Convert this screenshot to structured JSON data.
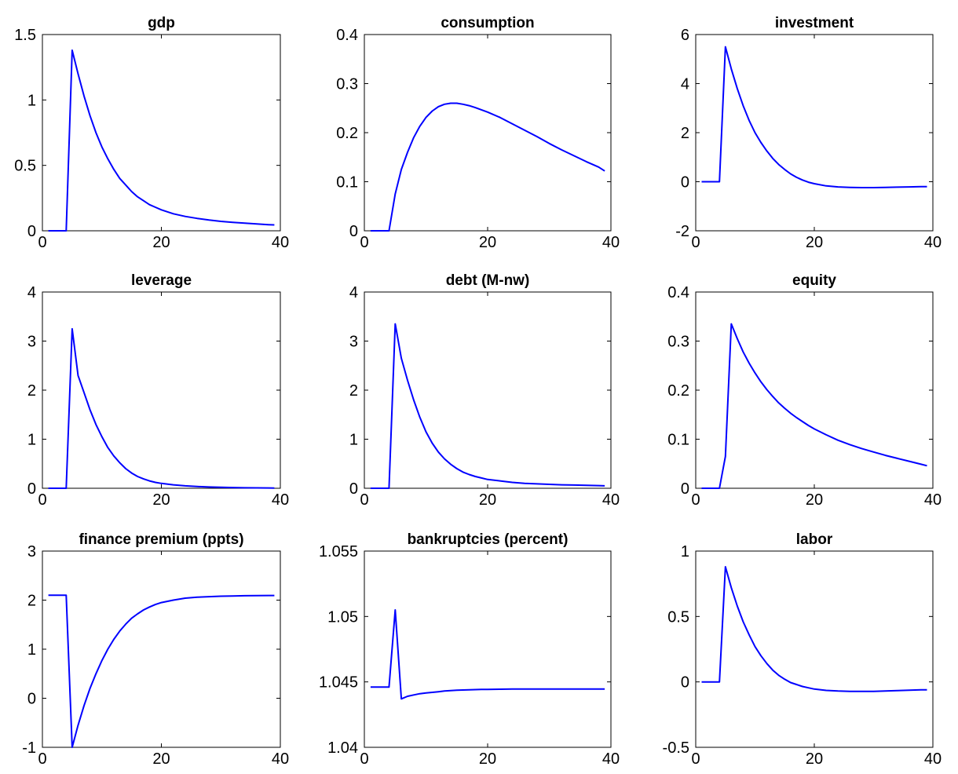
{
  "figure": {
    "line_color": "#0000ff"
  },
  "chart_data": [
    {
      "type": "line",
      "title": "gdp",
      "xlim": [
        0,
        40
      ],
      "ylim": [
        0,
        1.5
      ],
      "xticks": [
        "0",
        "20",
        "40"
      ],
      "xtick_values": [
        0,
        20,
        40
      ],
      "yticks": [
        "0",
        "0.5",
        "1",
        "1.5"
      ],
      "ytick_values": [
        0,
        0.5,
        1,
        1.5
      ],
      "x": [
        1,
        2,
        3,
        4,
        5,
        6,
        7,
        8,
        9,
        10,
        11,
        12,
        13,
        14,
        15,
        16,
        17,
        18,
        19,
        20,
        22,
        24,
        26,
        28,
        30,
        32,
        34,
        36,
        38,
        39
      ],
      "y": [
        0,
        0,
        0,
        0,
        1.38,
        1.2,
        1.03,
        0.88,
        0.75,
        0.64,
        0.55,
        0.47,
        0.4,
        0.35,
        0.3,
        0.26,
        0.23,
        0.2,
        0.18,
        0.16,
        0.13,
        0.11,
        0.095,
        0.082,
        0.072,
        0.064,
        0.058,
        0.052,
        0.047,
        0.045
      ]
    },
    {
      "type": "line",
      "title": "consumption",
      "xlim": [
        0,
        40
      ],
      "ylim": [
        0,
        0.4
      ],
      "xticks": [
        "0",
        "20",
        "40"
      ],
      "xtick_values": [
        0,
        20,
        40
      ],
      "yticks": [
        "0",
        "0.1",
        "0.2",
        "0.3",
        "0.4"
      ],
      "ytick_values": [
        0,
        0.1,
        0.2,
        0.3,
        0.4
      ],
      "x": [
        1,
        2,
        3,
        4,
        5,
        6,
        7,
        8,
        9,
        10,
        11,
        12,
        13,
        14,
        15,
        16,
        17,
        18,
        20,
        22,
        24,
        26,
        28,
        30,
        32,
        34,
        36,
        38,
        39
      ],
      "y": [
        0,
        0,
        0,
        0,
        0.075,
        0.125,
        0.16,
        0.19,
        0.213,
        0.231,
        0.244,
        0.253,
        0.258,
        0.26,
        0.26,
        0.258,
        0.255,
        0.251,
        0.242,
        0.231,
        0.218,
        0.205,
        0.192,
        0.178,
        0.165,
        0.153,
        0.141,
        0.13,
        0.122
      ]
    },
    {
      "type": "line",
      "title": "investment",
      "xlim": [
        0,
        40
      ],
      "ylim": [
        -2,
        6
      ],
      "xticks": [
        "0",
        "20",
        "40"
      ],
      "xtick_values": [
        0,
        20,
        40
      ],
      "yticks": [
        "-2",
        "0",
        "2",
        "4",
        "6"
      ],
      "ytick_values": [
        -2,
        0,
        2,
        4,
        6
      ],
      "x": [
        1,
        2,
        3,
        4,
        5,
        6,
        7,
        8,
        9,
        10,
        11,
        12,
        13,
        14,
        15,
        16,
        17,
        18,
        19,
        20,
        22,
        24,
        26,
        28,
        30,
        32,
        34,
        36,
        38,
        39
      ],
      "y": [
        0,
        0,
        0,
        0,
        5.5,
        4.6,
        3.8,
        3.1,
        2.5,
        2.0,
        1.6,
        1.25,
        0.95,
        0.7,
        0.5,
        0.32,
        0.18,
        0.07,
        -0.02,
        -0.08,
        -0.17,
        -0.21,
        -0.23,
        -0.24,
        -0.24,
        -0.23,
        -0.22,
        -0.21,
        -0.2,
        -0.2
      ]
    },
    {
      "type": "line",
      "title": "leverage",
      "xlim": [
        0,
        40
      ],
      "ylim": [
        0,
        4
      ],
      "xticks": [
        "0",
        "20",
        "40"
      ],
      "xtick_values": [
        0,
        20,
        40
      ],
      "yticks": [
        "0",
        "1",
        "2",
        "3",
        "4"
      ],
      "ytick_values": [
        0,
        1,
        2,
        3,
        4
      ],
      "x": [
        1,
        2,
        3,
        4,
        5,
        6,
        7,
        8,
        9,
        10,
        11,
        12,
        13,
        14,
        15,
        16,
        17,
        18,
        19,
        20,
        22,
        24,
        26,
        28,
        30,
        32,
        34,
        36,
        38,
        39
      ],
      "y": [
        0,
        0,
        0,
        0,
        3.25,
        2.3,
        1.95,
        1.6,
        1.3,
        1.05,
        0.83,
        0.66,
        0.52,
        0.4,
        0.31,
        0.24,
        0.19,
        0.15,
        0.12,
        0.1,
        0.07,
        0.05,
        0.035,
        0.025,
        0.02,
        0.015,
        0.01,
        0.008,
        0.006,
        0.005
      ]
    },
    {
      "type": "line",
      "title": "debt (M-nw)",
      "xlim": [
        0,
        40
      ],
      "ylim": [
        0,
        4
      ],
      "xticks": [
        "0",
        "20",
        "40"
      ],
      "xtick_values": [
        0,
        20,
        40
      ],
      "yticks": [
        "0",
        "1",
        "2",
        "3",
        "4"
      ],
      "ytick_values": [
        0,
        1,
        2,
        3,
        4
      ],
      "x": [
        1,
        2,
        3,
        4,
        5,
        6,
        7,
        8,
        9,
        10,
        11,
        12,
        13,
        14,
        15,
        16,
        17,
        18,
        19,
        20,
        22,
        24,
        26,
        28,
        30,
        32,
        34,
        36,
        38,
        39
      ],
      "y": [
        0,
        0,
        0,
        0,
        3.35,
        2.65,
        2.2,
        1.8,
        1.45,
        1.15,
        0.92,
        0.74,
        0.6,
        0.49,
        0.4,
        0.33,
        0.28,
        0.24,
        0.21,
        0.18,
        0.15,
        0.12,
        0.1,
        0.09,
        0.08,
        0.07,
        0.065,
        0.06,
        0.055,
        0.05
      ]
    },
    {
      "type": "line",
      "title": "equity",
      "xlim": [
        0,
        40
      ],
      "ylim": [
        0,
        0.4
      ],
      "xticks": [
        "0",
        "20",
        "40"
      ],
      "xtick_values": [
        0,
        20,
        40
      ],
      "yticks": [
        "0",
        "0.1",
        "0.2",
        "0.3",
        "0.4"
      ],
      "ytick_values": [
        0,
        0.1,
        0.2,
        0.3,
        0.4
      ],
      "x": [
        1,
        2,
        3,
        4,
        5,
        6,
        7,
        8,
        9,
        10,
        11,
        12,
        13,
        14,
        15,
        16,
        17,
        18,
        19,
        20,
        22,
        24,
        26,
        28,
        30,
        32,
        34,
        36,
        38,
        39
      ],
      "y": [
        0,
        0,
        0,
        0,
        0.065,
        0.335,
        0.305,
        0.278,
        0.255,
        0.235,
        0.217,
        0.201,
        0.187,
        0.174,
        0.163,
        0.153,
        0.144,
        0.136,
        0.128,
        0.121,
        0.109,
        0.098,
        0.089,
        0.081,
        0.074,
        0.067,
        0.061,
        0.055,
        0.049,
        0.046
      ]
    },
    {
      "type": "line",
      "title": "finance premium (ppts)",
      "xlim": [
        0,
        40
      ],
      "ylim": [
        -1,
        3
      ],
      "xticks": [
        "0",
        "20",
        "40"
      ],
      "xtick_values": [
        0,
        20,
        40
      ],
      "yticks": [
        "-1",
        "0",
        "1",
        "2",
        "3"
      ],
      "ytick_values": [
        -1,
        0,
        1,
        2,
        3
      ],
      "x": [
        1,
        2,
        3,
        4,
        5,
        6,
        7,
        8,
        9,
        10,
        11,
        12,
        13,
        14,
        15,
        16,
        17,
        18,
        19,
        20,
        22,
        24,
        26,
        28,
        30,
        32,
        34,
        36,
        38,
        39
      ],
      "y": [
        2.1,
        2.1,
        2.1,
        2.1,
        -1.0,
        -0.55,
        -0.15,
        0.2,
        0.5,
        0.77,
        1.0,
        1.2,
        1.37,
        1.51,
        1.63,
        1.72,
        1.8,
        1.86,
        1.91,
        1.95,
        2.0,
        2.04,
        2.06,
        2.07,
        2.08,
        2.085,
        2.09,
        2.092,
        2.095,
        2.095
      ]
    },
    {
      "type": "line",
      "title": "bankruptcies (percent)",
      "xlim": [
        0,
        40
      ],
      "ylim": [
        1.04,
        1.055
      ],
      "xticks": [
        "0",
        "20",
        "40"
      ],
      "xtick_values": [
        0,
        20,
        40
      ],
      "yticks": [
        "1.04",
        "1.045",
        "1.05",
        "1.055"
      ],
      "ytick_values": [
        1.04,
        1.045,
        1.05,
        1.055
      ],
      "x": [
        1,
        2,
        3,
        4,
        5,
        6,
        7,
        8,
        9,
        10,
        11,
        12,
        13,
        14,
        15,
        16,
        17,
        18,
        19,
        20,
        22,
        24,
        26,
        28,
        30,
        32,
        34,
        36,
        38,
        39
      ],
      "y": [
        1.0446,
        1.0446,
        1.0446,
        1.0446,
        1.0505,
        1.0437,
        1.0439,
        1.044,
        1.0441,
        1.04415,
        1.0442,
        1.04425,
        1.0443,
        1.04433,
        1.04436,
        1.04438,
        1.0444,
        1.04441,
        1.04442,
        1.04443,
        1.04444,
        1.04445,
        1.04445,
        1.04446,
        1.04446,
        1.04446,
        1.04446,
        1.04446,
        1.04446,
        1.04446
      ]
    },
    {
      "type": "line",
      "title": "labor",
      "xlim": [
        0,
        40
      ],
      "ylim": [
        -0.5,
        1
      ],
      "xticks": [
        "0",
        "20",
        "40"
      ],
      "xtick_values": [
        0,
        20,
        40
      ],
      "yticks": [
        "-0.5",
        "0",
        "0.5",
        "1"
      ],
      "ytick_values": [
        -0.5,
        0,
        0.5,
        1
      ],
      "x": [
        1,
        2,
        3,
        4,
        5,
        6,
        7,
        8,
        9,
        10,
        11,
        12,
        13,
        14,
        15,
        16,
        17,
        18,
        19,
        20,
        22,
        24,
        26,
        28,
        30,
        32,
        34,
        36,
        38,
        39
      ],
      "y": [
        0,
        0,
        0,
        0,
        0.88,
        0.72,
        0.58,
        0.46,
        0.36,
        0.27,
        0.2,
        0.14,
        0.09,
        0.05,
        0.02,
        -0.005,
        -0.02,
        -0.035,
        -0.045,
        -0.055,
        -0.065,
        -0.07,
        -0.072,
        -0.073,
        -0.072,
        -0.07,
        -0.067,
        -0.064,
        -0.061,
        -0.06
      ]
    }
  ]
}
